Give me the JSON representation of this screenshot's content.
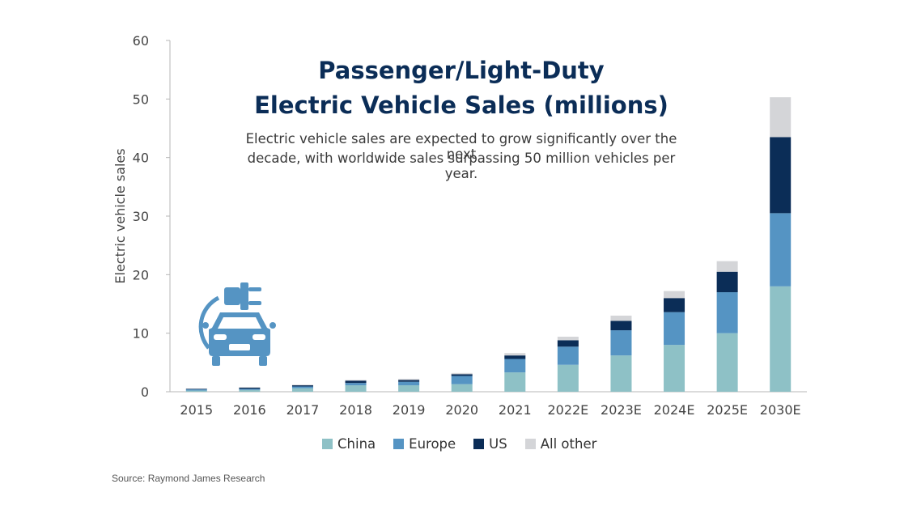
{
  "chart_data": {
    "type": "bar",
    "stacked": true,
    "title_line1": "Passenger/Light-Duty",
    "title_line2": "Electric Vehicle Sales (millions)",
    "subtitle_line1": "Electric vehicle sales are expected to grow significantly over the next",
    "subtitle_line2": "decade, with worldwide sales surpassing 50 million vehicles per year.",
    "ylabel": "Electric vehicle sales",
    "xlabel": "",
    "ylim": [
      0,
      60
    ],
    "yticks": [
      "0",
      "10",
      "20",
      "30",
      "40",
      "50",
      "60"
    ],
    "grid": false,
    "legend_position": "bottom",
    "categories": [
      "2015",
      "2016",
      "2017",
      "2018",
      "2019",
      "2020",
      "2021",
      "2022E",
      "2023E",
      "2024E",
      "2025E",
      "2030E"
    ],
    "series": [
      {
        "name": "China",
        "color": "#8ec1c6",
        "values": [
          0.2,
          0.3,
          0.6,
          1.1,
          1.1,
          1.3,
          3.3,
          4.6,
          6.2,
          8.0,
          10.0,
          18.0
        ]
      },
      {
        "name": "Europe",
        "color": "#5594c3",
        "values": [
          0.2,
          0.2,
          0.3,
          0.4,
          0.6,
          1.4,
          2.3,
          3.1,
          4.3,
          5.6,
          7.0,
          12.5
        ]
      },
      {
        "name": "US",
        "color": "#0b2d57",
        "values": [
          0.1,
          0.2,
          0.2,
          0.4,
          0.3,
          0.3,
          0.6,
          1.1,
          1.6,
          2.4,
          3.5,
          13.0
        ]
      },
      {
        "name": "All other",
        "color": "#d4d5d8",
        "values": [
          0.0,
          0.1,
          0.1,
          0.1,
          0.2,
          0.2,
          0.4,
          0.6,
          0.9,
          1.2,
          1.8,
          6.8
        ]
      }
    ]
  },
  "icon": {
    "name": "electric-car-plug-icon",
    "color": "#5594c3"
  },
  "source": "Source: Raymond James Research"
}
